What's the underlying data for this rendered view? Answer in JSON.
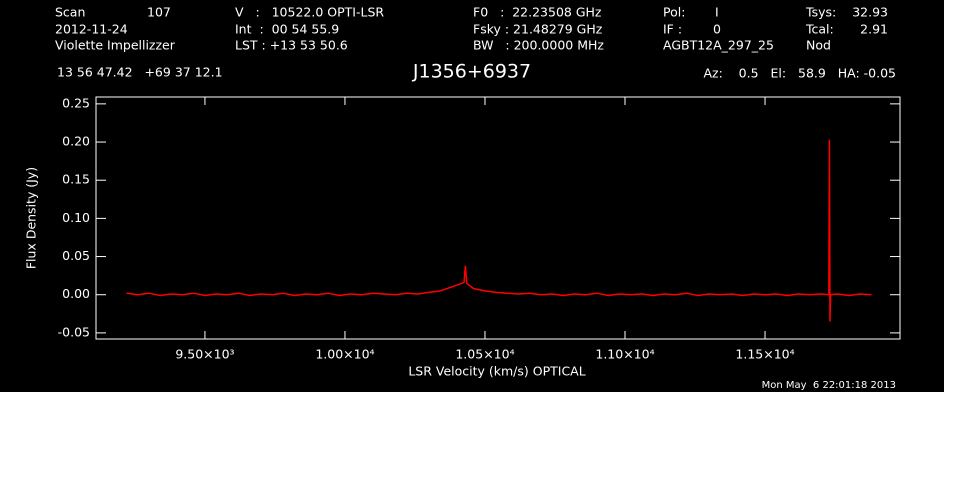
{
  "header": {
    "scan_label": "Scan",
    "scan": "107",
    "date": "2012-11-24",
    "observer": "Violette Impellizzer",
    "velocity": "V   :   10522.0 OPTI-LSR",
    "int": "Int  :  00 54 55.9",
    "lst": "LST : +13 53 50.6",
    "f0": "F0   :  22.23508 GHz",
    "fsky": "Fsky : 21.48279 GHz",
    "bw": "BW   : 200.0000 MHz",
    "pol_label": "Pol:",
    "pol": "I",
    "if_label": "IF :",
    "if": "0",
    "project": "AGBT12A_297_25",
    "tsys_label": "Tsys:",
    "tsys": "32.93",
    "tcal_label": "Tcal:",
    "tcal": "2.91",
    "mode": "Nod",
    "coords": "13 56 47.42   +69 37 12.1",
    "pointing": "Az:    0.5   El:   58.9   HA: -0.05",
    "timestamp": "Mon May  6 22:01:18 2013"
  },
  "chart_data": {
    "type": "line",
    "title": "J1356+6937",
    "x_label": "LSR Velocity (km/s) OPTICAL",
    "y_label": "Flux Density (Jy)",
    "xlim": [
      9111,
      11982
    ],
    "ylim": [
      -0.058,
      0.259
    ],
    "xticks": [
      {
        "value": 9500,
        "label": "9.50×10³"
      },
      {
        "value": 10000,
        "label": "1.00×10⁴"
      },
      {
        "value": 10500,
        "label": "1.05×10⁴"
      },
      {
        "value": 11000,
        "label": "1.10×10⁴"
      },
      {
        "value": 11500,
        "label": "1.15×10⁴"
      }
    ],
    "yticks": [
      {
        "value": -0.05,
        "label": "-0.05"
      },
      {
        "value": 0,
        "label": "0.00"
      },
      {
        "value": 0.05,
        "label": "0.05"
      },
      {
        "value": 0.1,
        "label": "0.10"
      },
      {
        "value": 0.15,
        "label": "0.15"
      },
      {
        "value": 0.2,
        "label": "0.20"
      },
      {
        "value": 0.25,
        "label": "0.25"
      }
    ],
    "series": [
      {
        "color": "#ff0000",
        "x": [
          9220,
          9260,
          9300,
          9340,
          9380,
          9420,
          9460,
          9500,
          9540,
          9580,
          9620,
          9660,
          9700,
          9740,
          9780,
          9820,
          9860,
          9900,
          9940,
          9980,
          10020,
          10060,
          10100,
          10140,
          10180,
          10220,
          10260,
          10300,
          10340,
          10380,
          10410,
          10425,
          10430,
          10435,
          10445,
          10460,
          10500,
          10540,
          10580,
          10620,
          10660,
          10700,
          10740,
          10780,
          10820,
          10860,
          10900,
          10940,
          10980,
          11020,
          11060,
          11100,
          11140,
          11180,
          11220,
          11260,
          11300,
          11340,
          11380,
          11420,
          11460,
          11500,
          11540,
          11580,
          11620,
          11660,
          11700,
          11728,
          11730,
          11732,
          11734,
          11760,
          11800,
          11840,
          11880
        ],
        "values": [
          0.002,
          0,
          0.002,
          -0.001,
          0.001,
          0,
          0.002,
          -0.001,
          0.001,
          0,
          0.002,
          -0.001,
          0.001,
          0,
          0.002,
          -0.001,
          0.001,
          0,
          0.002,
          -0.001,
          0.001,
          0,
          0.002,
          0.001,
          0,
          0.002,
          0.001,
          0.003,
          0.005,
          0.01,
          0.014,
          0.016,
          0.038,
          0.015,
          0.012,
          0.008,
          0.005,
          0.003,
          0.002,
          0.001,
          0.002,
          0,
          0.001,
          -0.001,
          0.001,
          0,
          0.002,
          -0.001,
          0.001,
          0,
          0.001,
          -0.001,
          0.001,
          0,
          0.002,
          -0.001,
          0.001,
          0,
          0.001,
          -0.001,
          0.001,
          0,
          0.001,
          -0.001,
          0.001,
          0,
          0.001,
          0,
          0.203,
          -0.035,
          0,
          0.001,
          -0.001,
          0.001,
          0
        ]
      }
    ]
  }
}
